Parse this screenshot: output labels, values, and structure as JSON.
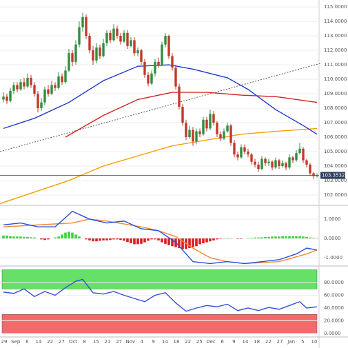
{
  "chart_data": [
    {
      "type": "candlestick",
      "ylim": [
        101.33,
        115.48
      ],
      "grid": true,
      "up_color": "#2f8f3f",
      "down_color": "#c0392b",
      "yticks": [
        {
          "value": 115,
          "label": "115.0000"
        },
        {
          "value": 114,
          "label": "114.0000"
        },
        {
          "value": 113,
          "label": "113.0000"
        },
        {
          "value": 112,
          "label": "112.0000"
        },
        {
          "value": 111,
          "label": "111.0000"
        },
        {
          "value": 110,
          "label": "110.0000"
        },
        {
          "value": 109,
          "label": "109.0000"
        },
        {
          "value": 108,
          "label": "108.0000"
        },
        {
          "value": 107,
          "label": "107.0000"
        },
        {
          "value": 106,
          "label": "106.0000"
        },
        {
          "value": 105,
          "label": "105.0000"
        },
        {
          "value": 104,
          "label": "104.0000"
        },
        {
          "value": 103,
          "label": "103.0000"
        },
        {
          "value": 102,
          "label": "102.0000"
        }
      ],
      "last_price": {
        "value": 103.3532,
        "label": "103.3532"
      },
      "candles": [
        [
          108.6,
          109.1,
          108.4,
          108.8
        ],
        [
          108.8,
          109.0,
          108.3,
          108.5
        ],
        [
          108.5,
          109.4,
          108.4,
          109.2
        ],
        [
          109.2,
          109.8,
          109.0,
          109.6
        ],
        [
          109.6,
          109.8,
          109.1,
          109.3
        ],
        [
          109.3,
          110.0,
          109.2,
          109.8
        ],
        [
          109.8,
          110.1,
          109.3,
          109.5
        ],
        [
          109.5,
          110.4,
          109.4,
          110.1
        ],
        [
          110.1,
          110.3,
          109.4,
          109.6
        ],
        [
          109.6,
          109.8,
          108.8,
          109.0
        ],
        [
          109.0,
          109.2,
          107.7,
          108.0
        ],
        [
          108.0,
          108.7,
          107.8,
          108.4
        ],
        [
          108.4,
          109.5,
          108.2,
          109.3
        ],
        [
          109.3,
          109.6,
          108.8,
          109.0
        ],
        [
          109.0,
          109.9,
          108.9,
          109.6
        ],
        [
          109.6,
          109.8,
          109.2,
          109.4
        ],
        [
          109.4,
          110.5,
          109.3,
          110.2
        ],
        [
          110.2,
          110.4,
          109.6,
          109.8
        ],
        [
          109.8,
          110.9,
          109.7,
          110.6
        ],
        [
          110.6,
          112.1,
          110.5,
          111.8
        ],
        [
          111.8,
          112.0,
          110.9,
          111.2
        ],
        [
          111.2,
          112.7,
          111.0,
          112.4
        ],
        [
          112.4,
          114.0,
          112.2,
          113.6
        ],
        [
          113.6,
          114.6,
          113.3,
          114.3
        ],
        [
          114.3,
          114.5,
          112.8,
          113.0
        ],
        [
          113.0,
          113.2,
          111.8,
          112.0
        ],
        [
          112.0,
          112.3,
          111.0,
          111.3
        ],
        [
          111.3,
          112.5,
          111.1,
          112.2
        ],
        [
          112.2,
          112.4,
          111.4,
          111.6
        ],
        [
          111.6,
          112.8,
          111.5,
          112.5
        ],
        [
          112.5,
          113.4,
          112.3,
          113.2
        ],
        [
          113.2,
          113.4,
          112.5,
          112.7
        ],
        [
          112.7,
          113.8,
          112.6,
          113.5
        ],
        [
          113.5,
          113.7,
          112.8,
          113.0
        ],
        [
          113.0,
          113.2,
          112.4,
          112.6
        ],
        [
          112.6,
          113.4,
          112.5,
          113.2
        ],
        [
          113.2,
          113.4,
          112.1,
          112.3
        ],
        [
          112.3,
          112.9,
          112.2,
          112.7
        ],
        [
          112.7,
          112.9,
          111.6,
          111.8
        ],
        [
          111.8,
          112.2,
          111.6,
          112.0
        ],
        [
          112.0,
          112.1,
          111.0,
          111.2
        ],
        [
          111.2,
          111.4,
          110.1,
          110.3
        ],
        [
          110.3,
          110.5,
          109.5,
          109.7
        ],
        [
          109.7,
          110.6,
          109.6,
          110.4
        ],
        [
          110.4,
          111.4,
          110.2,
          111.2
        ],
        [
          111.2,
          111.5,
          110.8,
          111.0
        ],
        [
          111.0,
          112.6,
          110.9,
          112.4
        ],
        [
          112.4,
          113.2,
          112.2,
          113.0
        ],
        [
          113.0,
          113.1,
          111.4,
          111.6
        ],
        [
          111.6,
          111.8,
          110.6,
          110.8
        ],
        [
          110.8,
          111.0,
          109.3,
          109.5
        ],
        [
          109.5,
          109.7,
          107.9,
          108.1
        ],
        [
          108.1,
          108.3,
          106.8,
          107.0
        ],
        [
          107.0,
          107.2,
          105.8,
          106.0
        ],
        [
          106.0,
          106.8,
          105.9,
          106.5
        ],
        [
          106.5,
          106.7,
          105.4,
          105.7
        ],
        [
          105.7,
          106.6,
          105.5,
          106.4
        ],
        [
          106.4,
          106.6,
          106.0,
          106.2
        ],
        [
          106.2,
          107.4,
          106.1,
          107.2
        ],
        [
          107.2,
          107.4,
          106.4,
          106.6
        ],
        [
          106.6,
          107.9,
          106.5,
          107.6
        ],
        [
          107.6,
          107.8,
          106.8,
          107.0
        ],
        [
          107.0,
          107.1,
          106.0,
          106.2
        ],
        [
          106.2,
          106.4,
          105.7,
          105.9
        ],
        [
          105.9,
          106.6,
          105.8,
          106.4
        ],
        [
          106.4,
          107.0,
          106.3,
          106.8
        ],
        [
          106.8,
          106.9,
          105.4,
          105.6
        ],
        [
          105.6,
          105.8,
          104.6,
          104.8
        ],
        [
          104.8,
          105.0,
          104.4,
          104.6
        ],
        [
          104.6,
          105.5,
          104.5,
          105.3
        ],
        [
          105.3,
          105.5,
          104.8,
          105.0
        ],
        [
          105.0,
          105.2,
          104.6,
          104.8
        ],
        [
          104.8,
          104.9,
          104.1,
          104.3
        ],
        [
          104.3,
          104.5,
          103.9,
          104.1
        ],
        [
          104.1,
          104.3,
          103.6,
          103.8
        ],
        [
          103.8,
          104.7,
          103.7,
          104.5
        ],
        [
          104.5,
          104.6,
          104.0,
          104.2
        ],
        [
          104.2,
          104.5,
          104.0,
          104.3
        ],
        [
          104.3,
          104.4,
          103.7,
          103.9
        ],
        [
          103.9,
          104.6,
          103.8,
          104.4
        ],
        [
          104.4,
          104.5,
          103.8,
          104.0
        ],
        [
          104.0,
          104.4,
          103.9,
          104.2
        ],
        [
          104.2,
          104.3,
          103.7,
          103.9
        ],
        [
          103.9,
          104.8,
          103.8,
          104.6
        ],
        [
          104.6,
          104.7,
          104.2,
          104.4
        ],
        [
          104.4,
          105.1,
          104.3,
          104.9
        ],
        [
          104.9,
          105.6,
          104.8,
          105.2
        ],
        [
          105.2,
          105.3,
          104.2,
          104.4
        ],
        [
          104.4,
          104.5,
          103.9,
          104.1
        ],
        [
          104.1,
          104.2,
          103.3,
          103.5
        ],
        [
          103.5,
          103.6,
          103.1,
          103.3
        ],
        [
          103.3,
          103.5,
          103.2,
          103.35
        ]
      ],
      "overlays": [
        {
          "color": "#5a5a5a",
          "dashed": true,
          "x": [
            -1,
            92
          ],
          "values": [
            105.0,
            111.1
          ]
        },
        {
          "color": "#f5a000",
          "x": [
            -1,
            19,
            29,
            39,
            49,
            59,
            69,
            79,
            91
          ],
          "values": [
            101.4,
            103.0,
            104.0,
            104.7,
            105.4,
            105.8,
            106.2,
            106.4,
            106.6
          ]
        },
        {
          "color": "#d42020",
          "x": [
            18,
            29,
            39,
            49,
            59,
            69,
            79,
            91
          ],
          "values": [
            106.0,
            107.5,
            108.6,
            109.1,
            109.1,
            108.9,
            108.8,
            108.4
          ]
        },
        {
          "color": "#2038d0",
          "x": [
            0,
            9,
            19,
            29,
            39,
            48,
            55,
            65,
            71,
            79,
            87,
            91
          ],
          "values": [
            106.6,
            107.3,
            108.4,
            109.9,
            110.9,
            111.0,
            110.7,
            110.1,
            109.3,
            107.9,
            106.8,
            106.2
          ]
        }
      ]
    },
    {
      "type": "macd",
      "ylim": [
        -1.39,
        1.64
      ],
      "pos_color": "#3cd23c",
      "neg_color": "#dd1c1c",
      "yticks": [
        {
          "value": 1,
          "label": "1.0000"
        },
        {
          "value": 0,
          "label": "0.0000"
        },
        {
          "value": -1,
          "label": "-1.0000"
        }
      ],
      "histogram": [
        0.15,
        0.15,
        0.12,
        0.1,
        0.1,
        0.1,
        0.08,
        0.08,
        0.06,
        0.05,
        0,
        -0.05,
        -0.08,
        -0.05,
        0,
        0.05,
        0.1,
        0.2,
        0.3,
        0.35,
        0.3,
        0.2,
        0.1,
        0,
        -0.05,
        -0.1,
        -0.15,
        -0.15,
        -0.12,
        -0.1,
        -0.1,
        -0.08,
        -0.05,
        -0.05,
        -0.08,
        -0.12,
        -0.18,
        -0.25,
        -0.3,
        -0.3,
        -0.28,
        -0.2,
        -0.12,
        -0.05,
        -0.05,
        -0.1,
        -0.2,
        -0.28,
        -0.35,
        -0.4,
        -0.45,
        -0.5,
        -0.55,
        -0.55,
        -0.5,
        -0.45,
        -0.4,
        -0.3,
        -0.25,
        -0.2,
        -0.15,
        -0.1,
        -0.05,
        -0.02,
        0.02,
        0.03,
        0.02,
        0,
        -0.02,
        -0.02,
        0,
        0.02,
        0.03,
        0.05,
        0.05,
        0.06,
        0.08,
        0.08,
        0.1,
        0.1,
        0.1,
        0.12,
        0.12,
        0.12,
        0.13,
        0.12,
        0.12,
        0.1,
        0.08,
        0.05,
        0.03,
        0.02
      ],
      "series": [
        {
          "color": "#f08a30",
          "x": [
            0,
            10,
            20,
            25,
            30,
            40,
            45,
            50,
            55,
            60,
            65,
            70,
            80,
            88,
            91
          ],
          "values": [
            0.6,
            0.7,
            0.8,
            1.0,
            0.9,
            0.6,
            0.4,
            0.1,
            -0.5,
            -1.0,
            -1.2,
            -1.3,
            -1.2,
            -0.8,
            -0.6
          ]
        },
        {
          "color": "#2a4fd8",
          "x": [
            0,
            5,
            10,
            15,
            20,
            25,
            30,
            35,
            40,
            45,
            50,
            55,
            60,
            65,
            70,
            75,
            80,
            85,
            88,
            91
          ],
          "values": [
            0.7,
            0.8,
            0.6,
            0.6,
            1.4,
            1.0,
            0.8,
            0.9,
            0.5,
            0.4,
            -0.2,
            -1.2,
            -1.3,
            -1.2,
            -1.3,
            -1.2,
            -1.1,
            -0.8,
            -0.5,
            -0.6
          ]
        }
      ]
    },
    {
      "type": "rsi",
      "ylim": [
        -6.5,
        103.8
      ],
      "yticks": [
        {
          "value": 80,
          "label": "80.0000"
        },
        {
          "value": 60,
          "label": "60.0000"
        },
        {
          "value": 40,
          "label": "40.0000"
        },
        {
          "value": 20,
          "label": "20.0000"
        },
        {
          "value": 0,
          "label": "0.0000"
        }
      ],
      "zones": [
        {
          "from": 70,
          "to": 100,
          "color": "#66e066"
        },
        {
          "from": 0,
          "to": 30,
          "color": "#f26b6b"
        }
      ],
      "series": [
        {
          "color": "#3050d8",
          "x": [
            0,
            3,
            6,
            9,
            12,
            15,
            18,
            21,
            23,
            26,
            29,
            32,
            35,
            38,
            41,
            44,
            47,
            50,
            53,
            56,
            59,
            62,
            65,
            68,
            71,
            74,
            77,
            80,
            83,
            86,
            88,
            91
          ],
          "values": [
            65,
            63,
            70,
            58,
            66,
            60,
            72,
            82,
            85,
            64,
            62,
            66,
            60,
            55,
            50,
            60,
            64,
            48,
            35,
            40,
            44,
            42,
            46,
            36,
            40,
            36,
            41,
            38,
            44,
            50,
            40,
            42
          ]
        }
      ],
      "categories": [
        "29",
        "Sep",
        "6",
        "14",
        "22",
        "27",
        "Oct",
        "8",
        "15",
        "21",
        "27",
        "Nov",
        "4",
        "9",
        "14",
        "18",
        "22",
        "25",
        "Dec",
        "6",
        "9",
        "14",
        "18",
        "22",
        "27",
        "Jan",
        "5",
        "10"
      ]
    }
  ]
}
